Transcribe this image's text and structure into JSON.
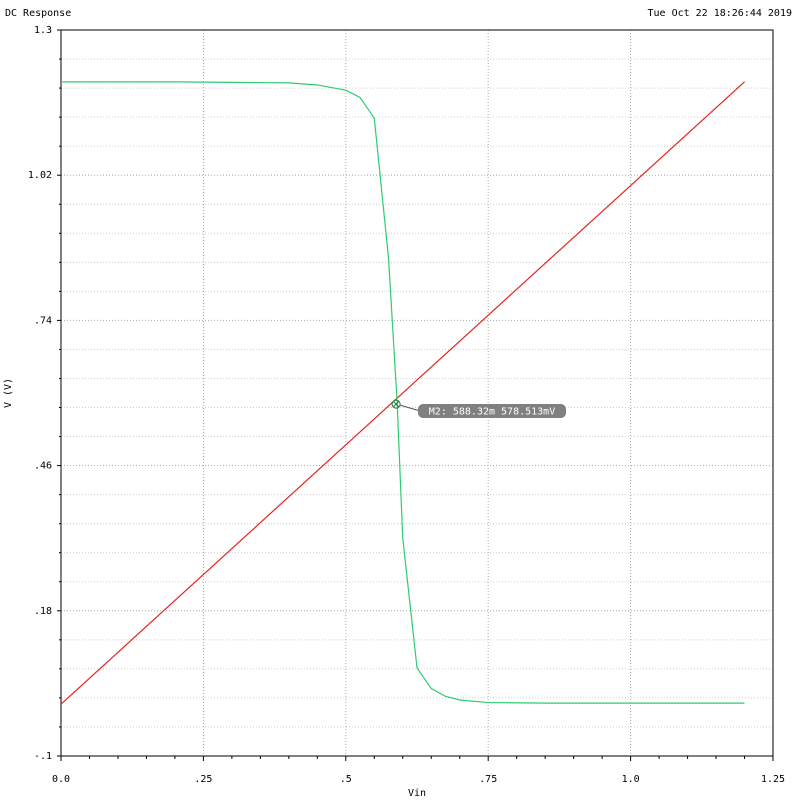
{
  "chart_data": {
    "type": "line",
    "title": "DC Response",
    "timestamp": "Tue Oct 22 18:26:44 2019",
    "ylabel": "V (V)",
    "xlabel": "Vin",
    "xlim": [
      0,
      1.25
    ],
    "xticks": [
      {
        "value": 0,
        "label": "0.0"
      },
      {
        "value": 0.25,
        "label": ".25"
      },
      {
        "value": 0.5,
        "label": ".5"
      },
      {
        "value": 0.75,
        "label": ".75"
      },
      {
        "value": 1.0,
        "label": "1.0"
      },
      {
        "value": 1.25,
        "label": "1.25"
      }
    ],
    "ylim": [
      -0.1,
      1.3
    ],
    "yticks": [
      {
        "value": -0.1,
        "label": "-.1"
      },
      {
        "value": 0.18,
        "label": ".18"
      },
      {
        "value": 0.46,
        "label": ".46"
      },
      {
        "value": 0.74,
        "label": ".74"
      },
      {
        "value": 1.02,
        "label": "1.02"
      },
      1.3
    ],
    "grid": true,
    "minor_divisions": 5,
    "series": [
      {
        "color": "#e8231c",
        "x": [
          0,
          1.2
        ],
        "values": [
          0,
          1.2
        ]
      },
      {
        "color": "#2ecc71",
        "x": [
          0,
          0.1,
          0.2,
          0.3,
          0.4,
          0.45,
          0.5,
          0.525,
          0.55,
          0.575,
          0.59,
          0.6,
          0.625,
          0.65,
          0.675,
          0.7,
          0.75,
          0.85,
          1.0,
          1.2
        ],
        "values": [
          1.2,
          1.2,
          1.2,
          1.199,
          1.198,
          1.194,
          1.184,
          1.17,
          1.13,
          0.86,
          0.585,
          0.32,
          0.07,
          0.03,
          0.015,
          0.008,
          0.003,
          0.002,
          0.002,
          0.002
        ]
      }
    ],
    "marker": {
      "label": "M2: 588.32m 578.513mV",
      "x": 0.58832,
      "y": 0.578513
    }
  }
}
